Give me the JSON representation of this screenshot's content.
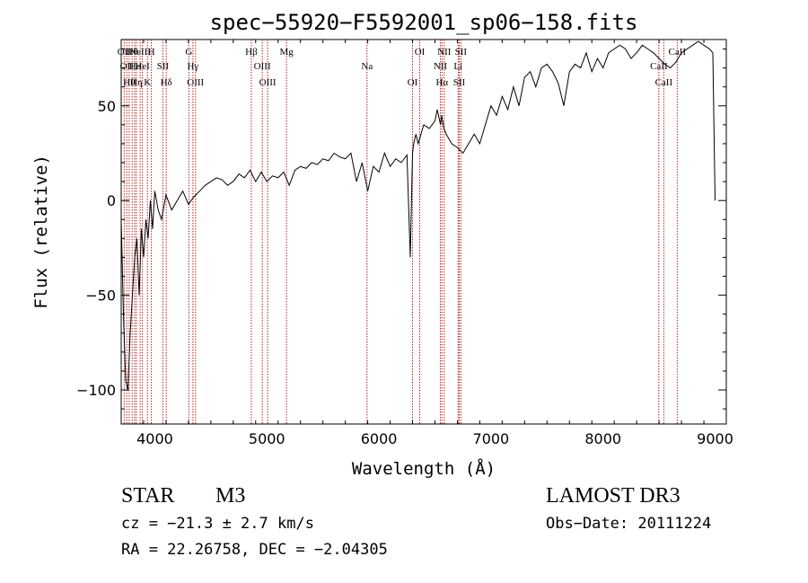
{
  "chart_data": {
    "type": "line",
    "title": "spec−55920−F5592001_sp06−158.fits",
    "xlabel": "Wavelength (Å)",
    "ylabel": "Flux (relative)",
    "xlim": [
      3700,
      9100
    ],
    "ylim": [
      -118,
      85
    ],
    "xticks": [
      4000,
      5000,
      6000,
      7000,
      8000,
      9000
    ],
    "yticks": [
      -100,
      -50,
      0,
      50
    ],
    "xtick_labels": [
      "4000",
      "5000",
      "6000",
      "7000",
      "8000",
      "9000"
    ],
    "ytick_labels": [
      "−100",
      "−50",
      "0",
      "50"
    ],
    "grid": false,
    "line_color": "#000000",
    "marker_color": "#b22222",
    "spectrum": {
      "x": [
        3700,
        3720,
        3740,
        3760,
        3780,
        3800,
        3820,
        3840,
        3860,
        3880,
        3900,
        3920,
        3940,
        3960,
        3980,
        4000,
        4030,
        4060,
        4100,
        4150,
        4200,
        4250,
        4300,
        4350,
        4400,
        4450,
        4500,
        4550,
        4600,
        4650,
        4700,
        4750,
        4800,
        4850,
        4900,
        4950,
        5000,
        5050,
        5100,
        5150,
        5200,
        5250,
        5300,
        5350,
        5400,
        5450,
        5500,
        5550,
        5600,
        5650,
        5700,
        5750,
        5800,
        5850,
        5900,
        5950,
        6000,
        6050,
        6100,
        6150,
        6200,
        6250,
        6280,
        6300,
        6310,
        6330,
        6350,
        6400,
        6450,
        6500,
        6520,
        6550,
        6560,
        6580,
        6600,
        6650,
        6700,
        6750,
        6800,
        6850,
        6900,
        6950,
        7000,
        7050,
        7100,
        7150,
        7200,
        7250,
        7300,
        7350,
        7400,
        7450,
        7500,
        7550,
        7600,
        7650,
        7700,
        7750,
        7800,
        7850,
        7900,
        7950,
        8000,
        8050,
        8100,
        8150,
        8200,
        8250,
        8300,
        8350,
        8400,
        8450,
        8500,
        8550,
        8600,
        8650,
        8700,
        8750,
        8800,
        8850,
        8900,
        8950,
        8980,
        9000
      ],
      "y": [
        -10,
        -60,
        -95,
        -100,
        -70,
        -50,
        -30,
        -20,
        -50,
        -15,
        -30,
        -10,
        -20,
        0,
        -15,
        5,
        -5,
        -10,
        3,
        -5,
        0,
        5,
        -2,
        2,
        5,
        8,
        10,
        12,
        11,
        8,
        10,
        14,
        12,
        16,
        10,
        15,
        10,
        13,
        12,
        15,
        8,
        16,
        18,
        17,
        20,
        19,
        22,
        21,
        25,
        23,
        22,
        25,
        10,
        20,
        5,
        18,
        15,
        25,
        18,
        22,
        20,
        24,
        -30,
        25,
        30,
        35,
        30,
        40,
        38,
        42,
        48,
        40,
        45,
        38,
        35,
        30,
        28,
        25,
        30,
        35,
        30,
        40,
        50,
        45,
        55,
        48,
        60,
        50,
        65,
        68,
        60,
        70,
        72,
        68,
        62,
        50,
        68,
        72,
        70,
        78,
        68,
        75,
        70,
        78,
        80,
        82,
        80,
        75,
        78,
        82,
        80,
        78,
        75,
        72,
        70,
        73,
        78,
        80,
        82,
        84,
        82,
        80,
        78,
        0
      ]
    },
    "lines": [
      {
        "wl": 3727,
        "label": "OII"
      },
      {
        "wl": 3750,
        "label": "OII"
      },
      {
        "wl": 3771,
        "label": "Hθ"
      },
      {
        "wl": 3798,
        "label": "Hθ"
      },
      {
        "wl": 3820,
        "label": "He"
      },
      {
        "wl": 3835,
        "label": "Hη"
      },
      {
        "wl": 3869,
        "label": "NeIII"
      },
      {
        "wl": 3889,
        "label": "HeI"
      },
      {
        "wl": 3934,
        "label": "K"
      },
      {
        "wl": 3969,
        "label": "H"
      },
      {
        "wl": 4072,
        "label": "SII"
      },
      {
        "wl": 4102,
        "label": "Hδ"
      },
      {
        "wl": 4304,
        "label": "G"
      },
      {
        "wl": 4340,
        "label": "Hγ"
      },
      {
        "wl": 4363,
        "label": "OIII"
      },
      {
        "wl": 4861,
        "label": "Hβ"
      },
      {
        "wl": 4959,
        "label": "OIII"
      },
      {
        "wl": 5007,
        "label": "OIII"
      },
      {
        "wl": 5175,
        "label": "Mg"
      },
      {
        "wl": 5894,
        "label": "Na"
      },
      {
        "wl": 6300,
        "label": "OI"
      },
      {
        "wl": 6364,
        "label": "OI"
      },
      {
        "wl": 6548,
        "label": "NII"
      },
      {
        "wl": 6563,
        "label": "Hα"
      },
      {
        "wl": 6583,
        "label": "NII"
      },
      {
        "wl": 6707,
        "label": "Li"
      },
      {
        "wl": 6716,
        "label": "SII"
      },
      {
        "wl": 6731,
        "label": "SII"
      },
      {
        "wl": 8498,
        "label": "CaII"
      },
      {
        "wl": 8542,
        "label": "CaII"
      },
      {
        "wl": 8662,
        "label": "CaII"
      }
    ]
  },
  "info": {
    "class": "STAR",
    "subclass": "M3",
    "survey": "LAMOST DR3",
    "cz": "cz = −21.3 ± 2.7 km/s",
    "obs_date": "Obs−Date: 20111224",
    "coords": "RA =  22.26758, DEC =  −2.04305"
  }
}
